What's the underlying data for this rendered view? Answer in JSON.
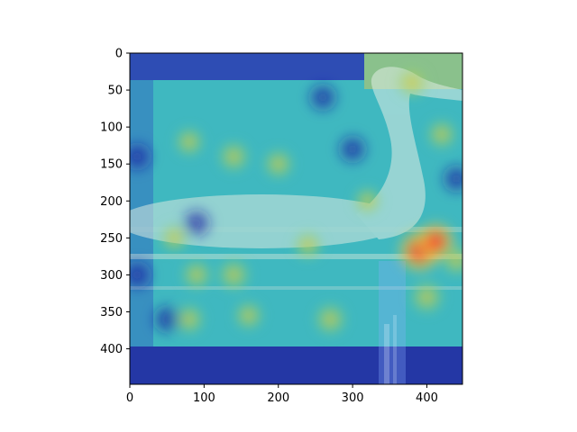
{
  "chart_data": {
    "type": "heatmap",
    "title": "",
    "xlabel": "",
    "ylabel": "",
    "xlim": [
      0,
      448
    ],
    "ylim": [
      448,
      0
    ],
    "x_ticks": [
      0,
      100,
      200,
      300,
      400
    ],
    "y_ticks": [
      0,
      50,
      100,
      150,
      200,
      250,
      300,
      350,
      400
    ],
    "colormap": "jet",
    "overlay_alpha": 0.55,
    "background_image": "photo-of-loon-bird-on-water",
    "heat_spots": [
      {
        "x": 390,
        "y": 268,
        "intensity": 1.0
      },
      {
        "x": 412,
        "y": 255,
        "intensity": 0.85
      },
      {
        "x": 400,
        "y": 330,
        "intensity": 0.65
      },
      {
        "x": 140,
        "y": 300,
        "intensity": 0.6
      },
      {
        "x": 90,
        "y": 300,
        "intensity": 0.5
      },
      {
        "x": 270,
        "y": 360,
        "intensity": 0.6
      },
      {
        "x": 140,
        "y": 140,
        "intensity": 0.55
      },
      {
        "x": 200,
        "y": 150,
        "intensity": 0.5
      },
      {
        "x": 80,
        "y": 120,
        "intensity": 0.45
      },
      {
        "x": 380,
        "y": 40,
        "intensity": 0.55
      },
      {
        "x": 420,
        "y": 110,
        "intensity": 0.5
      },
      {
        "x": 320,
        "y": 200,
        "intensity": 0.4
      },
      {
        "x": 440,
        "y": 280,
        "intensity": 0.55
      },
      {
        "x": 60,
        "y": 250,
        "intensity": 0.45
      },
      {
        "x": 240,
        "y": 260,
        "intensity": 0.45
      },
      {
        "x": 80,
        "y": 360,
        "intensity": 0.5
      },
      {
        "x": 160,
        "y": 355,
        "intensity": 0.45
      }
    ],
    "cold_spots": [
      {
        "x": 10,
        "y": 140
      },
      {
        "x": 10,
        "y": 300
      },
      {
        "x": 90,
        "y": 230
      },
      {
        "x": 50,
        "y": 360
      },
      {
        "x": 440,
        "y": 170
      },
      {
        "x": 260,
        "y": 60
      },
      {
        "x": 300,
        "y": 130
      }
    ],
    "colors": {
      "cold": "#1a1aa8",
      "mid": "#3fc8c8",
      "warm": "#e8d040",
      "hot": "#ee3a3a"
    }
  }
}
